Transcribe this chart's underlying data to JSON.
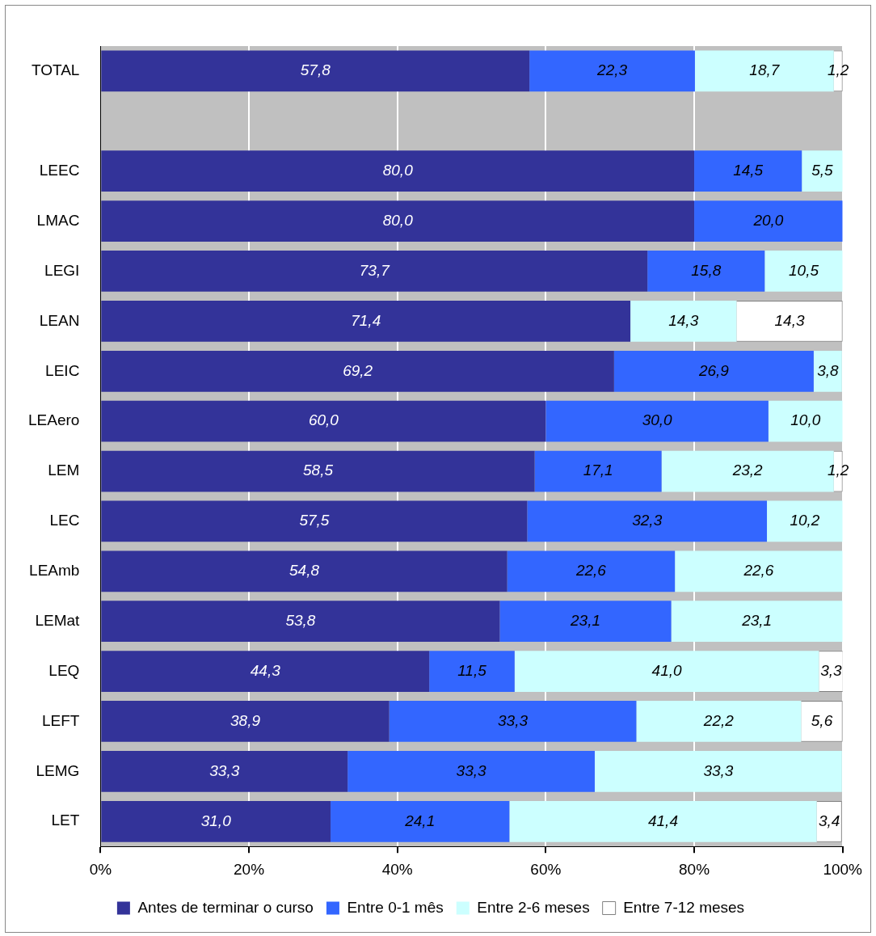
{
  "chart_data": {
    "type": "bar",
    "orientation": "horizontal",
    "stacked": true,
    "categories": [
      "TOTAL",
      null,
      "LEEC",
      "LMAC",
      "LEGI",
      "LEAN",
      "LEIC",
      "LEAero",
      "LEM",
      "LEC",
      "LEAmb",
      "LEMat",
      "LEQ",
      "LEFT",
      "LEMG",
      "LET"
    ],
    "series": [
      {
        "name": "Antes de terminar o curso",
        "color": "#333399",
        "values": [
          57.8,
          null,
          80.0,
          80.0,
          73.7,
          71.4,
          69.2,
          60.0,
          58.5,
          57.5,
          54.8,
          53.8,
          44.3,
          38.9,
          33.3,
          31.0
        ],
        "value_labels": [
          "57,8",
          null,
          "80,0",
          "80,0",
          "73,7",
          "71,4",
          "69,2",
          "60,0",
          "58,5",
          "57,5",
          "54,8",
          "53,8",
          "44,3",
          "38,9",
          "33,3",
          "31,0"
        ]
      },
      {
        "name": "Entre 0-1 mês",
        "color": "#3366ff",
        "values": [
          22.3,
          null,
          14.5,
          20.0,
          15.8,
          null,
          26.9,
          30.0,
          17.1,
          32.3,
          22.6,
          23.1,
          11.5,
          33.3,
          33.3,
          24.1
        ],
        "value_labels": [
          "22,3",
          null,
          "14,5",
          "20,0",
          "15,8",
          null,
          "26,9",
          "30,0",
          "17,1",
          "32,3",
          "22,6",
          "23,1",
          "11,5",
          "33,3",
          "33,3",
          "24,1"
        ]
      },
      {
        "name": "Entre 2-6 meses",
        "color": "#ccffff",
        "values": [
          18.7,
          null,
          5.5,
          null,
          10.5,
          14.3,
          3.8,
          10.0,
          23.2,
          10.2,
          22.6,
          23.1,
          41.0,
          22.2,
          33.3,
          41.4
        ],
        "value_labels": [
          "18,7",
          null,
          "5,5",
          null,
          "10,5",
          "14,3",
          "3,8",
          "10,0",
          "23,2",
          "10,2",
          "22,6",
          "23,1",
          "41,0",
          "22,2",
          "33,3",
          "41,4"
        ]
      },
      {
        "name": "Entre 7-12 meses",
        "color": "#ffffff",
        "values": [
          1.2,
          null,
          null,
          null,
          null,
          14.3,
          null,
          null,
          1.2,
          null,
          null,
          null,
          3.3,
          5.6,
          null,
          3.4
        ],
        "value_labels": [
          "1,2",
          null,
          null,
          null,
          null,
          "14,3",
          null,
          null,
          "1,2",
          null,
          null,
          null,
          "3,3",
          "5,6",
          null,
          "3,4"
        ]
      }
    ],
    "xlim": [
      0,
      100
    ],
    "xticks": [
      {
        "value": 0,
        "label": "0%"
      },
      {
        "value": 20,
        "label": "20%"
      },
      {
        "value": 40,
        "label": "40%"
      },
      {
        "value": 60,
        "label": "60%"
      },
      {
        "value": 80,
        "label": "80%"
      },
      {
        "value": 100,
        "label": "100%"
      }
    ],
    "grid": "x",
    "legend": "bottom"
  }
}
